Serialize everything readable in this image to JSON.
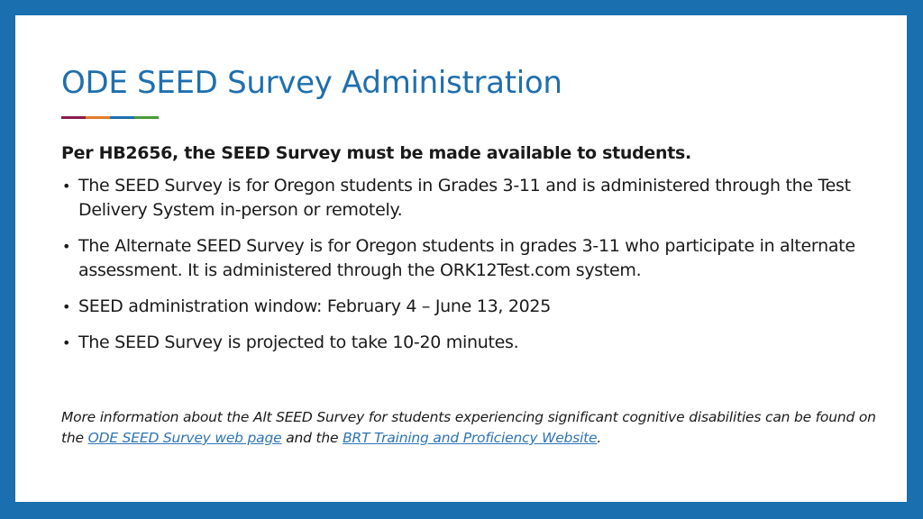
{
  "slide": {
    "title": "ODE SEED Survey Administration",
    "accent_colors": [
      "#8b1a4a",
      "#e07b2a",
      "#1f6fae",
      "#4a9a3a"
    ],
    "lead": "Per HB2656, the SEED Survey must be made available to students.",
    "bullet_glyph": "•",
    "bullets": [
      "The SEED Survey is for Oregon students in Grades 3-11 and is administered through the Test Delivery System in-person or remotely.",
      "The Alternate SEED Survey is for Oregon students in grades 3-11 who participate in alternate assessment. It is administered through the ORK12Test.com system.",
      "SEED administration window: February 4 – June 13, 2025",
      "The SEED Survey is projected to take 10-20 minutes."
    ],
    "footnote": {
      "text_before": "More information about the Alt SEED Survey for students experiencing significant cognitive disabilities can be found on the ",
      "link1": "ODE SEED Survey web page",
      "text_middle": " and the ",
      "link2": "BRT Training and Proficiency Website",
      "text_after": "."
    }
  },
  "colors": {
    "frame": "#1a6fae",
    "title": "#1f6fae",
    "link": "#2e74b5"
  }
}
